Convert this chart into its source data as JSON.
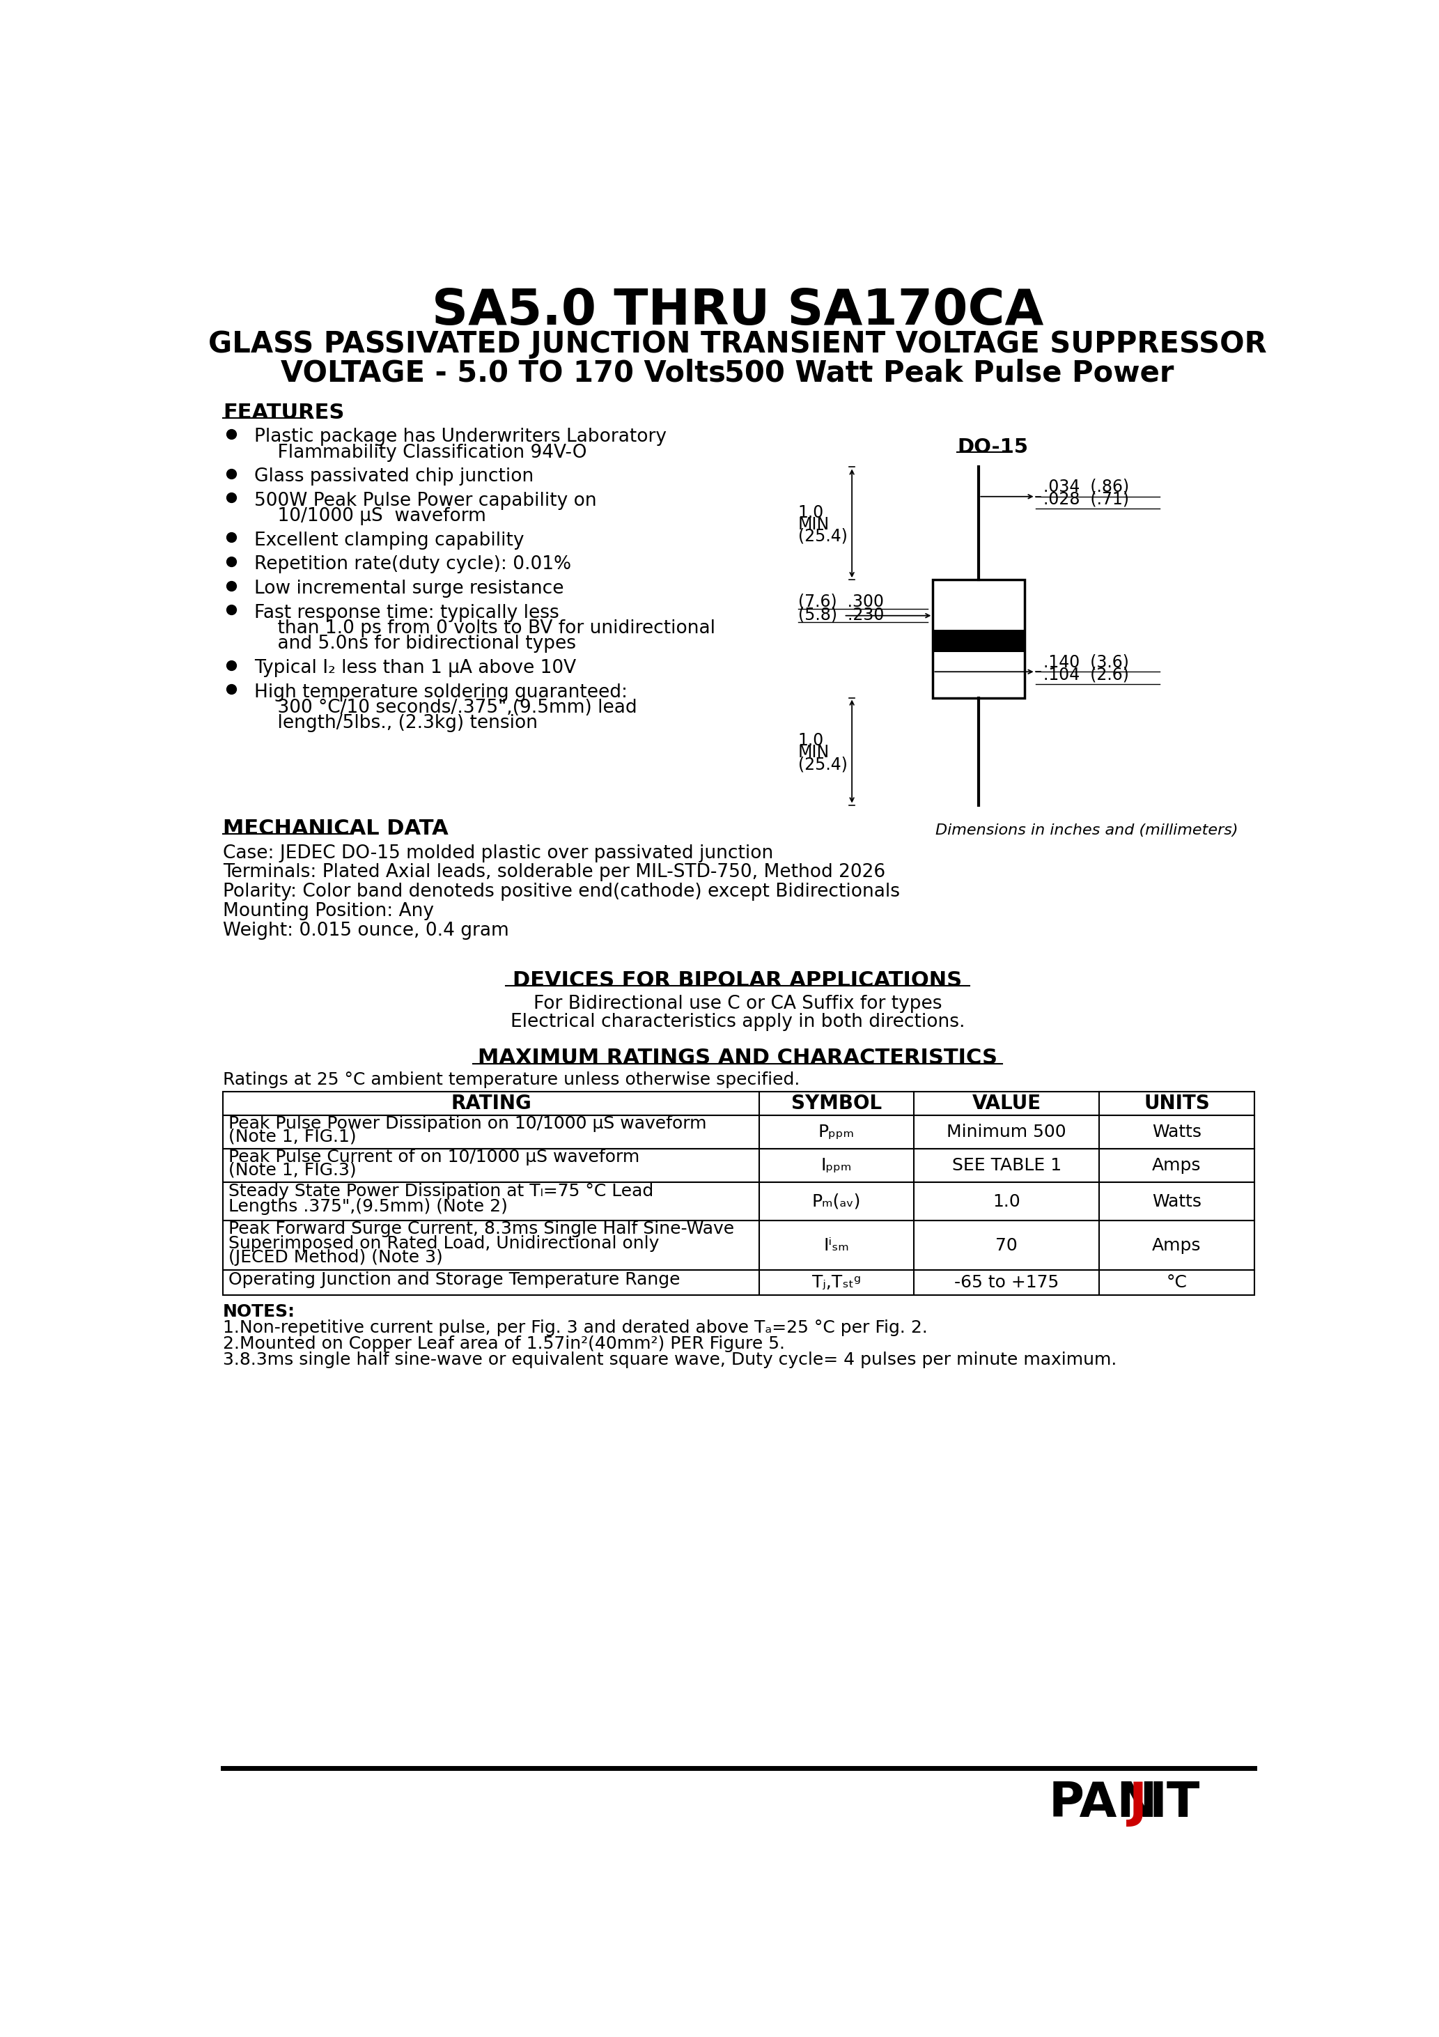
{
  "title1": "SA5.0 THRU SA170CA",
  "title2": "GLASS PASSIVATED JUNCTION TRANSIENT VOLTAGE SUPPRESSOR",
  "title3_left": "VOLTAGE - 5.0 TO 170 Volts",
  "title3_right": "500 Watt Peak Pulse Power",
  "bg_color": "#ffffff",
  "text_color": "#000000",
  "features_title": "FEATURES",
  "do15_label": "DO-15",
  "dim_note": "Dimensions in inches and (millimeters)",
  "mech_title": "MECHANICAL DATA",
  "mech_lines": [
    "Case: JEDEC DO-15 molded plastic over passivated junction",
    "Terminals: Plated Axial leads, solderable per MIL-STD-750, Method 2026",
    "Polarity: Color band denoteds positive end(cathode) except Bidirectionals",
    "Mounting Position: Any",
    "Weight: 0.015 ounce, 0.4 gram"
  ],
  "bipolar_title": "DEVICES FOR BIPOLAR APPLICATIONS",
  "bipolar_line1": "For Bidirectional use C or CA Suffix for types",
  "bipolar_line2": "Electrical characteristics apply in both directions.",
  "max_title": "MAXIMUM RATINGS AND CHARACTERISTICS",
  "max_note": "Ratings at 25 °C ambient temperature unless otherwise specified.",
  "table_headers": [
    "RATING",
    "SYMBOL",
    "VALUE",
    "UNITS"
  ],
  "notes_header": "NOTES:",
  "notes": [
    "1.Non-repetitive current pulse, per Fig. 3 and derated above Tₐ=25 °C per Fig. 2.",
    "2.Mounted on Copper Leaf area of 1.57in²(40mm²) PER Figure 5.",
    "3.8.3ms single half sine-wave or equivalent square wave, Duty cycle= 4 pulses per minute maximum."
  ],
  "footer_line_color": "#000000"
}
